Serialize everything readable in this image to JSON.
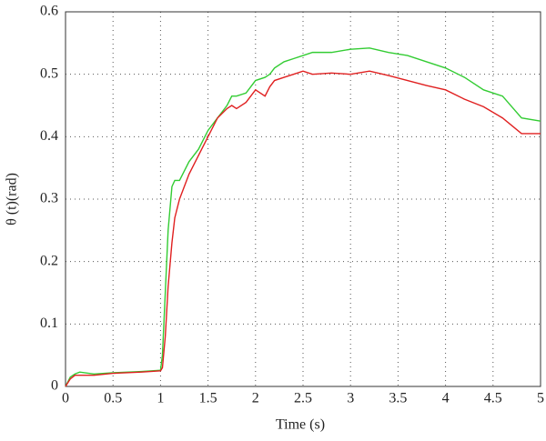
{
  "chart_data": {
    "type": "line",
    "xlabel": "Time (s)",
    "ylabel": "θ (t)(rad)",
    "x": [
      0,
      0.05,
      0.1,
      0.15,
      0.2,
      0.3,
      0.5,
      0.8,
      1.0,
      1.02,
      1.05,
      1.08,
      1.12,
      1.15,
      1.2,
      1.3,
      1.4,
      1.5,
      1.6,
      1.7,
      1.75,
      1.8,
      1.9,
      2.0,
      2.1,
      2.15,
      2.2,
      2.3,
      2.4,
      2.5,
      2.6,
      2.8,
      3.0,
      3.2,
      3.4,
      3.6,
      3.8,
      4.0,
      4.2,
      4.4,
      4.6,
      4.8,
      5.0
    ],
    "series": [
      {
        "color": "#33cc33",
        "values": [
          0,
          0.015,
          0.02,
          0.023,
          0.022,
          0.02,
          0.022,
          0.024,
          0.026,
          0.05,
          0.15,
          0.25,
          0.32,
          0.33,
          0.33,
          0.36,
          0.38,
          0.41,
          0.43,
          0.45,
          0.465,
          0.465,
          0.47,
          0.49,
          0.495,
          0.5,
          0.51,
          0.52,
          0.525,
          0.53,
          0.535,
          0.535,
          0.54,
          0.542,
          0.535,
          0.53,
          0.52,
          0.51,
          0.495,
          0.475,
          0.465,
          0.43,
          0.425
        ]
      },
      {
        "color": "#e02020",
        "values": [
          0,
          0.012,
          0.018,
          0.018,
          0.018,
          0.018,
          0.021,
          0.023,
          0.025,
          0.03,
          0.08,
          0.16,
          0.23,
          0.27,
          0.3,
          0.34,
          0.37,
          0.4,
          0.43,
          0.445,
          0.45,
          0.445,
          0.455,
          0.475,
          0.465,
          0.48,
          0.49,
          0.495,
          0.5,
          0.505,
          0.5,
          0.502,
          0.5,
          0.505,
          0.498,
          0.49,
          0.482,
          0.475,
          0.46,
          0.448,
          0.43,
          0.405,
          0.405
        ]
      }
    ],
    "xlim": [
      0,
      5
    ],
    "xticks": [
      0,
      0.5,
      1,
      1.5,
      2,
      2.5,
      3,
      3.5,
      4,
      4.5,
      5
    ],
    "ylim": [
      0,
      0.6
    ],
    "yticks": [
      0,
      0.1,
      0.2,
      0.3,
      0.4,
      0.5,
      0.6
    ],
    "grid": true
  }
}
